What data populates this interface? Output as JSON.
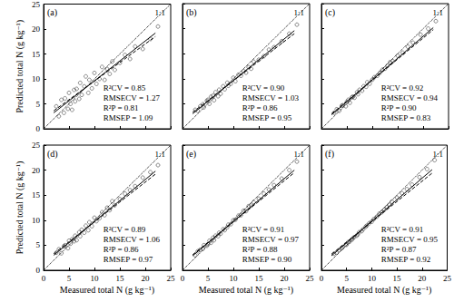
{
  "chart_data": [
    {
      "type": "scatter",
      "title": "(a)",
      "ylabel": "Predicted total N (g kg⁻¹)",
      "tick_labels": "y",
      "grid": false,
      "xlim": [
        0,
        25
      ],
      "ylim": [
        0,
        25
      ],
      "xticks": [
        0,
        5,
        10,
        15,
        20,
        25
      ],
      "yticks": [
        0,
        5,
        10,
        15,
        20,
        25
      ],
      "annotations": {
        "reference": "1:1",
        "stats": [
          "R²CV = 0.85",
          "RMSECV = 1.27",
          "R²P = 0.81",
          "RMSEP = 1.09"
        ]
      },
      "series": [
        {
          "color": "#333333",
          "marker": "circle",
          "x": [
            2.5,
            3,
            3.5,
            4,
            4.2,
            4.8,
            5,
            5.3,
            5.6,
            6,
            6.2,
            6.5,
            7,
            7.2,
            7.5,
            8,
            8.3,
            8.8,
            9,
            9.5,
            10,
            10.4,
            11,
            11.5,
            12,
            12.5,
            13,
            13.5,
            14,
            15,
            16,
            17,
            18,
            19.5,
            21,
            22.5
          ],
          "values": [
            4.5,
            2.5,
            5.8,
            3.2,
            6.1,
            4.0,
            7.2,
            5.0,
            3.8,
            7.8,
            5.5,
            8.0,
            6.0,
            9.2,
            6.8,
            8.5,
            10.5,
            7.2,
            9.8,
            8.1,
            11.2,
            9.0,
            10.0,
            12.4,
            9.8,
            12.0,
            11.0,
            13.5,
            11.8,
            13.2,
            14.8,
            14.0,
            16.5,
            16.0,
            18.0,
            20.5
          ]
        }
      ],
      "lines": [
        {
          "x": [
            0,
            25
          ],
          "y": [
            0,
            25
          ],
          "line_style": "dotted"
        },
        {
          "x": [
            2,
            22
          ],
          "y": [
            3.2,
            19.2
          ],
          "line_style": "solid"
        },
        {
          "x": [
            2,
            22
          ],
          "y": [
            3.6,
            18.5
          ],
          "line_style": "dashed"
        }
      ]
    },
    {
      "type": "scatter",
      "title": "(b)",
      "tick_labels": false,
      "grid": false,
      "xlim": [
        0,
        25
      ],
      "ylim": [
        0,
        25
      ],
      "xticks": [
        0,
        5,
        10,
        15,
        20,
        25
      ],
      "yticks": [
        0,
        5,
        10,
        15,
        20,
        25
      ],
      "annotations": {
        "reference": "1:1",
        "stats": [
          "R²CV = 0.90",
          "RMSECV = 1.03",
          "R²P = 0.86",
          "RMSEP = 0.95"
        ]
      },
      "series": [
        {
          "color": "#333333",
          "marker": "circle",
          "x": [
            2.5,
            3,
            3.5,
            4,
            4.2,
            4.8,
            5,
            5.3,
            5.6,
            6,
            6.2,
            6.5,
            7,
            7.2,
            7.5,
            8,
            8.3,
            8.8,
            9,
            9.5,
            10,
            10.4,
            11,
            11.5,
            12,
            12.5,
            13,
            13.5,
            14,
            15,
            16,
            17,
            18,
            19.5,
            21,
            22.5
          ],
          "values": [
            3.8,
            3.6,
            4.5,
            4.9,
            4.3,
            5.6,
            5.8,
            5.0,
            6.4,
            6.6,
            5.7,
            7.3,
            6.5,
            7.8,
            7.0,
            8.5,
            7.9,
            9.2,
            8.6,
            9.0,
            10.2,
            9.5,
            10.8,
            10.6,
            11.5,
            11.2,
            12.3,
            12.0,
            13.4,
            13.8,
            14.5,
            15.8,
            16.3,
            17.5,
            19.0,
            20.8
          ]
        }
      ],
      "lines": [
        {
          "x": [
            0,
            25
          ],
          "y": [
            0,
            25
          ],
          "line_style": "dotted"
        },
        {
          "x": [
            2,
            22
          ],
          "y": [
            3.0,
            19.6
          ],
          "line_style": "solid"
        },
        {
          "x": [
            2,
            22
          ],
          "y": [
            3.3,
            19.0
          ],
          "line_style": "dashed"
        }
      ]
    },
    {
      "type": "scatter",
      "title": "(c)",
      "tick_labels": false,
      "grid": false,
      "xlim": [
        0,
        25
      ],
      "ylim": [
        0,
        25
      ],
      "xticks": [
        0,
        5,
        10,
        15,
        20,
        25
      ],
      "yticks": [
        0,
        5,
        10,
        15,
        20,
        25
      ],
      "annotations": {
        "reference": "1:1",
        "stats": [
          "R²CV = 0.92",
          "RMSECV = 0.94",
          "R²P = 0.90",
          "RMSEP = 0.83"
        ]
      },
      "series": [
        {
          "color": "#333333",
          "marker": "circle",
          "x": [
            2.5,
            3,
            3.5,
            4,
            4.2,
            4.8,
            5,
            5.3,
            5.6,
            6,
            6.2,
            6.5,
            7,
            7.2,
            7.5,
            8,
            8.3,
            8.8,
            9,
            9.5,
            10,
            10.4,
            11,
            11.5,
            12,
            12.5,
            13,
            13.5,
            14,
            15,
            16,
            17,
            18,
            19.5,
            21,
            22.5
          ],
          "values": [
            3.2,
            3.9,
            3.6,
            4.6,
            4.7,
            4.5,
            5.4,
            5.8,
            5.2,
            6.3,
            6.4,
            6.2,
            7.3,
            6.9,
            7.8,
            7.6,
            8.5,
            8.4,
            9.3,
            9.0,
            9.8,
            10.3,
            10.6,
            11.2,
            11.8,
            12.0,
            12.6,
            13.3,
            13.5,
            14.6,
            15.2,
            16.4,
            17.2,
            18.8,
            20.0,
            21.5
          ]
        }
      ],
      "lines": [
        {
          "x": [
            0,
            25
          ],
          "y": [
            0,
            25
          ],
          "line_style": "dotted"
        },
        {
          "x": [
            2,
            22
          ],
          "y": [
            2.8,
            20.2
          ],
          "line_style": "solid"
        },
        {
          "x": [
            2,
            22
          ],
          "y": [
            3.0,
            19.8
          ],
          "line_style": "dashed"
        }
      ]
    },
    {
      "type": "scatter",
      "title": "(d)",
      "ylabel": "Predicted total N (g kg⁻¹)",
      "xlabel": "Measured total N (g kg⁻¹)",
      "tick_labels": true,
      "grid": false,
      "xlim": [
        0,
        25
      ],
      "ylim": [
        0,
        25
      ],
      "xticks": [
        0,
        5,
        10,
        15,
        20,
        25
      ],
      "yticks": [
        0,
        5,
        10,
        15,
        20,
        25
      ],
      "annotations": {
        "reference": "1:1",
        "stats": [
          "R²CV = 0.89",
          "RMSECV = 1.06",
          "R²P = 0.86",
          "RMSEP = 0.97"
        ]
      },
      "series": [
        {
          "color": "#333333",
          "marker": "circle",
          "x": [
            2.5,
            3,
            3.5,
            4,
            4.2,
            4.8,
            5,
            5.3,
            5.6,
            6,
            6.2,
            6.5,
            7,
            7.2,
            7.5,
            8,
            8.3,
            8.8,
            9,
            9.5,
            10,
            10.4,
            11,
            11.5,
            12,
            12.5,
            13,
            13.5,
            14,
            15,
            16,
            17,
            18,
            19.5,
            21,
            22.5
          ],
          "values": [
            3.5,
            4.2,
            3.4,
            4.8,
            5.0,
            4.4,
            5.9,
            5.3,
            6.2,
            5.8,
            6.9,
            6.0,
            7.6,
            6.8,
            8.1,
            7.5,
            8.9,
            8.0,
            9.6,
            8.8,
            10.5,
            9.8,
            10.4,
            11.6,
            11.0,
            12.5,
            12.0,
            13.8,
            13.0,
            14.2,
            15.3,
            16.0,
            16.8,
            18.5,
            19.6,
            21.0
          ]
        }
      ],
      "lines": [
        {
          "x": [
            0,
            25
          ],
          "y": [
            0,
            25
          ],
          "line_style": "dotted"
        },
        {
          "x": [
            2,
            22
          ],
          "y": [
            3.0,
            19.8
          ],
          "line_style": "solid"
        },
        {
          "x": [
            2,
            22
          ],
          "y": [
            3.3,
            19.2
          ],
          "line_style": "dashed"
        }
      ]
    },
    {
      "type": "scatter",
      "title": "(e)",
      "xlabel": "Measured total N (g kg⁻¹)",
      "tick_labels": "x",
      "grid": false,
      "xlim": [
        0,
        25
      ],
      "ylim": [
        0,
        25
      ],
      "xticks": [
        0,
        5,
        10,
        15,
        20,
        25
      ],
      "yticks": [
        0,
        5,
        10,
        15,
        20,
        25
      ],
      "annotations": {
        "reference": "1:1",
        "stats": [
          "R²CV = 0.91",
          "RMSECV = 0.97",
          "R²P = 0.88",
          "RMSEP = 0.90"
        ]
      },
      "series": [
        {
          "color": "#333333",
          "marker": "circle",
          "x": [
            2.5,
            3,
            3.5,
            4,
            4.2,
            4.8,
            5,
            5.3,
            5.6,
            6,
            6.2,
            6.5,
            7,
            7.2,
            7.5,
            8,
            8.3,
            8.8,
            9,
            9.5,
            10,
            10.4,
            11,
            11.5,
            12,
            12.5,
            13,
            13.5,
            14,
            15,
            16,
            17,
            18,
            19.5,
            21,
            22.5
          ],
          "values": [
            3.0,
            3.8,
            4.1,
            4.3,
            5.0,
            4.9,
            5.2,
            5.9,
            5.5,
            6.5,
            6.0,
            6.9,
            6.8,
            7.5,
            7.3,
            8.2,
            8.0,
            8.6,
            9.1,
            9.2,
            10.0,
            10.1,
            10.9,
            11.0,
            11.9,
            11.8,
            12.8,
            12.9,
            13.6,
            14.3,
            15.3,
            16.1,
            17.0,
            18.3,
            20.0,
            21.7
          ]
        }
      ],
      "lines": [
        {
          "x": [
            0,
            25
          ],
          "y": [
            0,
            25
          ],
          "line_style": "dotted"
        },
        {
          "x": [
            2,
            22
          ],
          "y": [
            2.9,
            20.0
          ],
          "line_style": "solid"
        },
        {
          "x": [
            2,
            22
          ],
          "y": [
            3.1,
            19.5
          ],
          "line_style": "dashed"
        }
      ]
    },
    {
      "type": "scatter",
      "title": "(f)",
      "xlabel": "Measured total N (g kg⁻¹)",
      "tick_labels": "x",
      "grid": false,
      "xlim": [
        0,
        25
      ],
      "ylim": [
        0,
        25
      ],
      "xticks": [
        0,
        5,
        10,
        15,
        20,
        25
      ],
      "yticks": [
        0,
        5,
        10,
        15,
        20,
        25
      ],
      "annotations": {
        "reference": "1:1",
        "stats": [
          "R²CV = 0.91",
          "RMSECV = 0.95",
          "R²P = 0.87",
          "RMSEP = 0.92"
        ]
      },
      "series": [
        {
          "color": "#333333",
          "marker": "circle",
          "x": [
            2.5,
            3,
            3.5,
            4,
            4.2,
            4.8,
            5,
            5.3,
            5.6,
            6,
            6.2,
            6.5,
            7,
            7.2,
            7.5,
            8,
            8.3,
            8.8,
            9,
            9.5,
            10,
            10.4,
            11,
            11.5,
            12,
            12.5,
            13,
            13.5,
            14,
            15,
            16,
            17,
            18,
            19.5,
            21,
            22.5
          ],
          "values": [
            3.3,
            3.5,
            4.0,
            4.4,
            4.6,
            5.1,
            5.1,
            5.6,
            5.7,
            6.1,
            6.3,
            6.6,
            6.9,
            7.1,
            7.6,
            7.8,
            8.2,
            8.7,
            8.9,
            9.4,
            9.7,
            10.2,
            10.7,
            11.3,
            11.6,
            12.1,
            12.6,
            13.1,
            13.7,
            14.5,
            15.4,
            16.2,
            17.1,
            18.6,
            20.2,
            22.0
          ]
        }
      ],
      "lines": [
        {
          "x": [
            0,
            25
          ],
          "y": [
            0,
            25
          ],
          "line_style": "dotted"
        },
        {
          "x": [
            2,
            22
          ],
          "y": [
            2.9,
            20.1
          ],
          "line_style": "solid"
        },
        {
          "x": [
            2,
            22
          ],
          "y": [
            3.2,
            19.4
          ],
          "line_style": "dashed"
        }
      ]
    }
  ]
}
